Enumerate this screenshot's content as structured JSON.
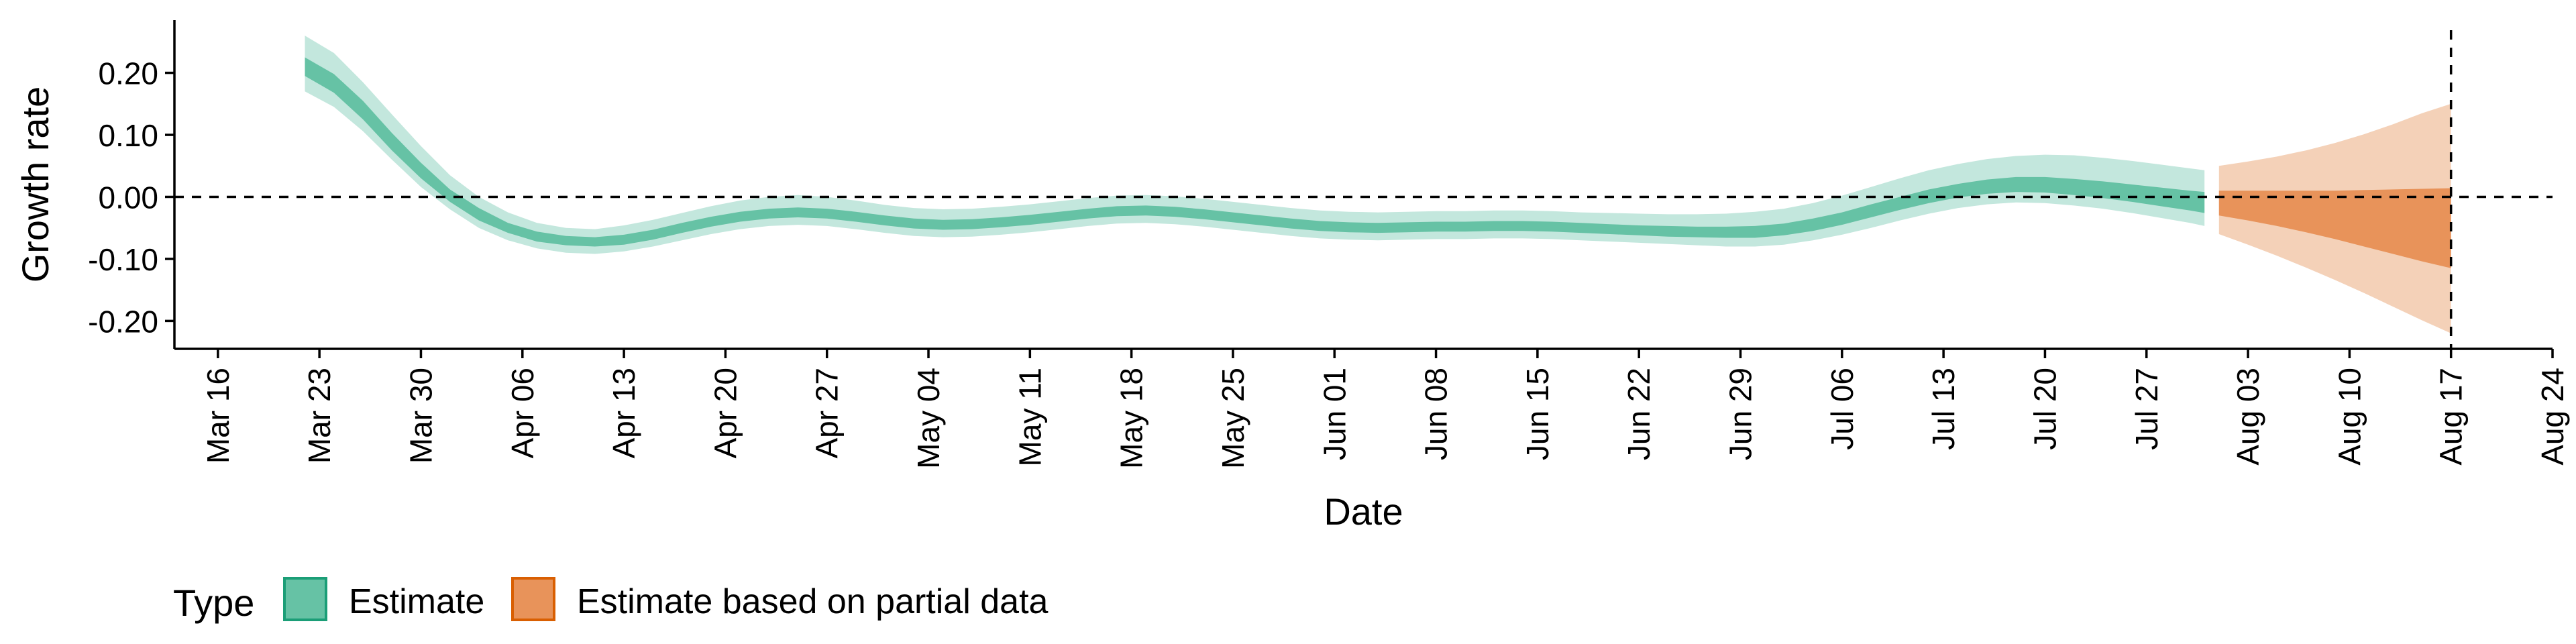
{
  "chart_data": {
    "type": "area",
    "title": "",
    "xlabel": "Date",
    "ylabel": "Growth rate",
    "xlim": [
      "2020-03-13",
      "2020-08-24"
    ],
    "ylim": [
      -0.245,
      0.285
    ],
    "yticks": [
      {
        "value": 0.2,
        "label": "0.20"
      },
      {
        "value": 0.1,
        "label": "0.10"
      },
      {
        "value": 0.0,
        "label": "0.00"
      },
      {
        "value": -0.1,
        "label": "-0.10"
      },
      {
        "value": -0.2,
        "label": "-0.20"
      }
    ],
    "xticks": [
      {
        "date": "2020-03-16",
        "label": "Mar 16"
      },
      {
        "date": "2020-03-23",
        "label": "Mar 23"
      },
      {
        "date": "2020-03-30",
        "label": "Mar 30"
      },
      {
        "date": "2020-04-06",
        "label": "Apr 06"
      },
      {
        "date": "2020-04-13",
        "label": "Apr 13"
      },
      {
        "date": "2020-04-20",
        "label": "Apr 20"
      },
      {
        "date": "2020-04-27",
        "label": "Apr 27"
      },
      {
        "date": "2020-05-04",
        "label": "May 04"
      },
      {
        "date": "2020-05-11",
        "label": "May 11"
      },
      {
        "date": "2020-05-18",
        "label": "May 18"
      },
      {
        "date": "2020-05-25",
        "label": "May 25"
      },
      {
        "date": "2020-06-01",
        "label": "Jun 01"
      },
      {
        "date": "2020-06-08",
        "label": "Jun 08"
      },
      {
        "date": "2020-06-15",
        "label": "Jun 15"
      },
      {
        "date": "2020-06-22",
        "label": "Jun 22"
      },
      {
        "date": "2020-06-29",
        "label": "Jun 29"
      },
      {
        "date": "2020-07-06",
        "label": "Jul 06"
      },
      {
        "date": "2020-07-13",
        "label": "Jul 13"
      },
      {
        "date": "2020-07-20",
        "label": "Jul 20"
      },
      {
        "date": "2020-07-27",
        "label": "Jul 27"
      },
      {
        "date": "2020-08-03",
        "label": "Aug 03"
      },
      {
        "date": "2020-08-10",
        "label": "Aug 10"
      },
      {
        "date": "2020-08-17",
        "label": "Aug 17"
      },
      {
        "date": "2020-08-24",
        "label": "Aug 24"
      }
    ],
    "reference_lines": [
      {
        "axis": "y",
        "value": 0.0,
        "style": "dashed"
      },
      {
        "axis": "x",
        "value": "2020-08-17",
        "style": "dashed"
      }
    ],
    "legend": {
      "title": "Type",
      "placement": "bottom-left",
      "entries": [
        {
          "label": "Estimate",
          "fill": "#66c2a5",
          "stroke": "#1b9e77"
        },
        {
          "label": "Estimate based on partial data",
          "fill": "#e8935a",
          "stroke": "#d95f02"
        }
      ]
    },
    "grid": false,
    "series": [
      {
        "name": "Estimate",
        "inner_color": "#66c2a5",
        "outer_color": "#c3e7dd",
        "points": [
          {
            "date": "2020-03-22",
            "lo90": 0.17,
            "lo50": 0.195,
            "hi50": 0.225,
            "hi90": 0.26
          },
          {
            "date": "2020-03-24",
            "lo90": 0.145,
            "lo50": 0.168,
            "hi50": 0.198,
            "hi90": 0.232
          },
          {
            "date": "2020-03-26",
            "lo90": 0.106,
            "lo50": 0.125,
            "hi50": 0.155,
            "hi90": 0.185
          },
          {
            "date": "2020-03-28",
            "lo90": 0.06,
            "lo50": 0.075,
            "hi50": 0.103,
            "hi90": 0.133
          },
          {
            "date": "2020-03-30",
            "lo90": 0.016,
            "lo50": 0.03,
            "hi50": 0.055,
            "hi90": 0.082
          },
          {
            "date": "2020-04-01",
            "lo90": -0.02,
            "lo50": -0.008,
            "hi50": 0.012,
            "hi90": 0.035
          },
          {
            "date": "2020-04-03",
            "lo90": -0.05,
            "lo50": -0.038,
            "hi50": -0.018,
            "hi90": 0.0
          },
          {
            "date": "2020-04-05",
            "lo90": -0.07,
            "lo50": -0.058,
            "hi50": -0.042,
            "hi90": -0.025
          },
          {
            "date": "2020-04-07",
            "lo90": -0.083,
            "lo50": -0.072,
            "hi50": -0.056,
            "hi90": -0.042
          },
          {
            "date": "2020-04-09",
            "lo90": -0.09,
            "lo50": -0.078,
            "hi50": -0.063,
            "hi90": -0.05
          },
          {
            "date": "2020-04-11",
            "lo90": -0.092,
            "lo50": -0.08,
            "hi50": -0.065,
            "hi90": -0.052
          },
          {
            "date": "2020-04-13",
            "lo90": -0.088,
            "lo50": -0.077,
            "hi50": -0.061,
            "hi90": -0.046
          },
          {
            "date": "2020-04-15",
            "lo90": -0.08,
            "lo50": -0.069,
            "hi50": -0.053,
            "hi90": -0.037
          },
          {
            "date": "2020-04-17",
            "lo90": -0.07,
            "lo50": -0.058,
            "hi50": -0.042,
            "hi90": -0.026
          },
          {
            "date": "2020-04-19",
            "lo90": -0.06,
            "lo50": -0.048,
            "hi50": -0.032,
            "hi90": -0.015
          },
          {
            "date": "2020-04-21",
            "lo90": -0.052,
            "lo50": -0.04,
            "hi50": -0.024,
            "hi90": -0.006
          },
          {
            "date": "2020-04-23",
            "lo90": -0.047,
            "lo50": -0.035,
            "hi50": -0.019,
            "hi90": 0.0
          },
          {
            "date": "2020-04-25",
            "lo90": -0.045,
            "lo50": -0.033,
            "hi50": -0.017,
            "hi90": 0.003
          },
          {
            "date": "2020-04-27",
            "lo90": -0.047,
            "lo50": -0.035,
            "hi50": -0.019,
            "hi90": 0.0
          },
          {
            "date": "2020-04-29",
            "lo90": -0.052,
            "lo50": -0.04,
            "hi50": -0.024,
            "hi90": -0.006
          },
          {
            "date": "2020-05-01",
            "lo90": -0.058,
            "lo50": -0.046,
            "hi50": -0.03,
            "hi90": -0.013
          },
          {
            "date": "2020-05-03",
            "lo90": -0.063,
            "lo50": -0.051,
            "hi50": -0.035,
            "hi90": -0.018
          },
          {
            "date": "2020-05-05",
            "lo90": -0.065,
            "lo50": -0.053,
            "hi50": -0.037,
            "hi90": -0.02
          },
          {
            "date": "2020-05-07",
            "lo90": -0.064,
            "lo50": -0.052,
            "hi50": -0.036,
            "hi90": -0.019
          },
          {
            "date": "2020-05-09",
            "lo90": -0.061,
            "lo50": -0.049,
            "hi50": -0.033,
            "hi90": -0.016
          },
          {
            "date": "2020-05-11",
            "lo90": -0.057,
            "lo50": -0.045,
            "hi50": -0.029,
            "hi90": -0.012
          },
          {
            "date": "2020-05-13",
            "lo90": -0.052,
            "lo50": -0.04,
            "hi50": -0.024,
            "hi90": -0.007
          },
          {
            "date": "2020-05-15",
            "lo90": -0.047,
            "lo50": -0.035,
            "hi50": -0.019,
            "hi90": -0.002
          },
          {
            "date": "2020-05-17",
            "lo90": -0.043,
            "lo50": -0.031,
            "hi50": -0.015,
            "hi90": 0.002
          },
          {
            "date": "2020-05-19",
            "lo90": -0.042,
            "lo50": -0.03,
            "hi50": -0.014,
            "hi90": 0.003
          },
          {
            "date": "2020-05-21",
            "lo90": -0.044,
            "lo50": -0.032,
            "hi50": -0.016,
            "hi90": 0.001
          },
          {
            "date": "2020-05-23",
            "lo90": -0.048,
            "lo50": -0.036,
            "hi50": -0.02,
            "hi90": -0.003
          },
          {
            "date": "2020-05-25",
            "lo90": -0.053,
            "lo50": -0.041,
            "hi50": -0.025,
            "hi90": -0.008
          },
          {
            "date": "2020-05-27",
            "lo90": -0.058,
            "lo50": -0.046,
            "hi50": -0.03,
            "hi90": -0.013
          },
          {
            "date": "2020-05-29",
            "lo90": -0.063,
            "lo50": -0.051,
            "hi50": -0.035,
            "hi90": -0.018
          },
          {
            "date": "2020-05-31",
            "lo90": -0.067,
            "lo50": -0.055,
            "hi50": -0.039,
            "hi90": -0.022
          },
          {
            "date": "2020-06-02",
            "lo90": -0.069,
            "lo50": -0.057,
            "hi50": -0.041,
            "hi90": -0.024
          },
          {
            "date": "2020-06-04",
            "lo90": -0.07,
            "lo50": -0.058,
            "hi50": -0.042,
            "hi90": -0.025
          },
          {
            "date": "2020-06-06",
            "lo90": -0.069,
            "lo50": -0.057,
            "hi50": -0.041,
            "hi90": -0.024
          },
          {
            "date": "2020-06-08",
            "lo90": -0.068,
            "lo50": -0.056,
            "hi50": -0.04,
            "hi90": -0.023
          },
          {
            "date": "2020-06-10",
            "lo90": -0.068,
            "lo50": -0.056,
            "hi50": -0.04,
            "hi90": -0.023
          },
          {
            "date": "2020-06-12",
            "lo90": -0.067,
            "lo50": -0.055,
            "hi50": -0.039,
            "hi90": -0.022
          },
          {
            "date": "2020-06-14",
            "lo90": -0.067,
            "lo50": -0.055,
            "hi50": -0.039,
            "hi90": -0.022
          },
          {
            "date": "2020-06-16",
            "lo90": -0.068,
            "lo50": -0.056,
            "hi50": -0.04,
            "hi90": -0.023
          },
          {
            "date": "2020-06-18",
            "lo90": -0.07,
            "lo50": -0.058,
            "hi50": -0.042,
            "hi90": -0.025
          },
          {
            "date": "2020-06-20",
            "lo90": -0.072,
            "lo50": -0.06,
            "hi50": -0.044,
            "hi90": -0.026
          },
          {
            "date": "2020-06-22",
            "lo90": -0.074,
            "lo50": -0.062,
            "hi50": -0.046,
            "hi90": -0.027
          },
          {
            "date": "2020-06-24",
            "lo90": -0.076,
            "lo50": -0.064,
            "hi50": -0.047,
            "hi90": -0.028
          },
          {
            "date": "2020-06-26",
            "lo90": -0.078,
            "lo50": -0.065,
            "hi50": -0.048,
            "hi90": -0.028
          },
          {
            "date": "2020-06-28",
            "lo90": -0.08,
            "lo50": -0.066,
            "hi50": -0.048,
            "hi90": -0.027
          },
          {
            "date": "2020-06-30",
            "lo90": -0.08,
            "lo50": -0.066,
            "hi50": -0.047,
            "hi90": -0.024
          },
          {
            "date": "2020-07-02",
            "lo90": -0.077,
            "lo50": -0.062,
            "hi50": -0.043,
            "hi90": -0.019
          },
          {
            "date": "2020-07-04",
            "lo90": -0.07,
            "lo50": -0.055,
            "hi50": -0.035,
            "hi90": -0.01
          },
          {
            "date": "2020-07-06",
            "lo90": -0.061,
            "lo50": -0.045,
            "hi50": -0.025,
            "hi90": 0.002
          },
          {
            "date": "2020-07-08",
            "lo90": -0.05,
            "lo50": -0.033,
            "hi50": -0.012,
            "hi90": 0.016
          },
          {
            "date": "2020-07-10",
            "lo90": -0.038,
            "lo50": -0.021,
            "hi50": 0.0,
            "hi90": 0.03
          },
          {
            "date": "2020-07-12",
            "lo90": -0.027,
            "lo50": -0.01,
            "hi50": 0.012,
            "hi90": 0.043
          },
          {
            "date": "2020-07-14",
            "lo90": -0.018,
            "lo50": -0.001,
            "hi50": 0.021,
            "hi90": 0.053
          },
          {
            "date": "2020-07-16",
            "lo90": -0.012,
            "lo50": 0.005,
            "hi50": 0.028,
            "hi90": 0.061
          },
          {
            "date": "2020-07-18",
            "lo90": -0.009,
            "lo50": 0.008,
            "hi50": 0.032,
            "hi90": 0.066
          },
          {
            "date": "2020-07-20",
            "lo90": -0.01,
            "lo50": 0.007,
            "hi50": 0.032,
            "hi90": 0.068
          },
          {
            "date": "2020-07-22",
            "lo90": -0.014,
            "lo50": 0.003,
            "hi50": 0.029,
            "hi90": 0.067
          },
          {
            "date": "2020-07-24",
            "lo90": -0.019,
            "lo50": -0.002,
            "hi50": 0.025,
            "hi90": 0.063
          },
          {
            "date": "2020-07-26",
            "lo90": -0.026,
            "lo50": -0.008,
            "hi50": 0.02,
            "hi90": 0.058
          },
          {
            "date": "2020-07-28",
            "lo90": -0.034,
            "lo50": -0.015,
            "hi50": 0.015,
            "hi90": 0.052
          },
          {
            "date": "2020-07-30",
            "lo90": -0.042,
            "lo50": -0.022,
            "hi50": 0.01,
            "hi90": 0.046
          },
          {
            "date": "2020-07-31",
            "lo90": -0.047,
            "lo50": -0.026,
            "hi50": 0.008,
            "hi90": 0.043
          }
        ]
      },
      {
        "name": "Estimate based on partial data",
        "inner_color": "#e8935a",
        "outer_color": "#f4d1b8",
        "points": [
          {
            "date": "2020-08-01",
            "lo90": -0.06,
            "lo50": -0.03,
            "hi50": 0.01,
            "hi90": 0.05
          },
          {
            "date": "2020-08-03",
            "lo90": -0.077,
            "lo50": -0.038,
            "hi50": 0.01,
            "hi90": 0.057
          },
          {
            "date": "2020-08-05",
            "lo90": -0.095,
            "lo50": -0.047,
            "hi50": 0.01,
            "hi90": 0.065
          },
          {
            "date": "2020-08-07",
            "lo90": -0.114,
            "lo50": -0.057,
            "hi50": 0.01,
            "hi90": 0.075
          },
          {
            "date": "2020-08-09",
            "lo90": -0.134,
            "lo50": -0.068,
            "hi50": 0.01,
            "hi90": 0.087
          },
          {
            "date": "2020-08-11",
            "lo90": -0.155,
            "lo50": -0.08,
            "hi50": 0.011,
            "hi90": 0.101
          },
          {
            "date": "2020-08-13",
            "lo90": -0.177,
            "lo50": -0.092,
            "hi50": 0.012,
            "hi90": 0.117
          },
          {
            "date": "2020-08-15",
            "lo90": -0.199,
            "lo50": -0.104,
            "hi50": 0.013,
            "hi90": 0.135
          },
          {
            "date": "2020-08-17",
            "lo90": -0.22,
            "lo50": -0.115,
            "hi50": 0.014,
            "hi90": 0.15
          }
        ]
      }
    ]
  }
}
